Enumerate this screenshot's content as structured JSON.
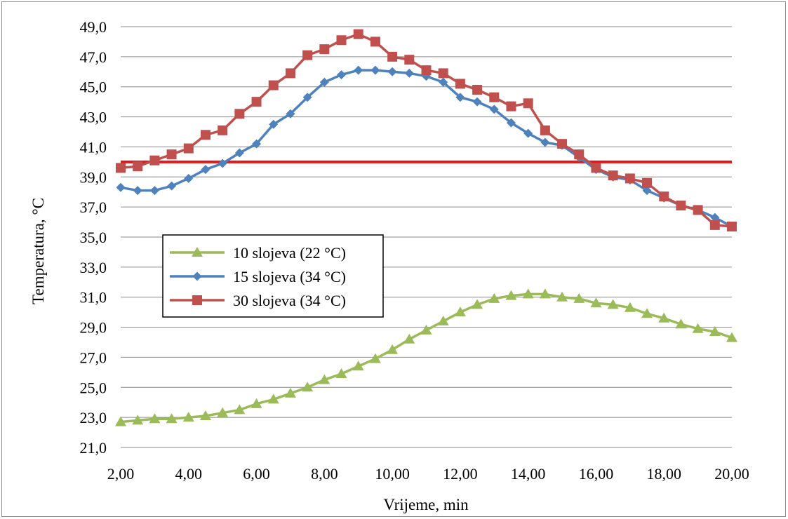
{
  "chart_data": {
    "type": "line",
    "xlabel": "Vrijeme, min",
    "ylabel": "Temperatura, °C",
    "xlim": [
      2,
      20
    ],
    "ylim": [
      21,
      49
    ],
    "x_ticks": [
      2,
      4,
      6,
      8,
      10,
      12,
      14,
      16,
      18,
      20
    ],
    "x_tick_labels": [
      "2,00",
      "4,00",
      "6,00",
      "8,00",
      "10,00",
      "12,00",
      "14,00",
      "16,00",
      "18,00",
      "20,00"
    ],
    "y_ticks": [
      21,
      23,
      25,
      27,
      29,
      31,
      33,
      35,
      37,
      39,
      41,
      43,
      45,
      47,
      49
    ],
    "y_tick_labels": [
      "21,0",
      "23,0",
      "25,0",
      "27,0",
      "29,0",
      "31,0",
      "33,0",
      "35,0",
      "37,0",
      "39,0",
      "41,0",
      "43,0",
      "45,0",
      "47,0",
      "49,0"
    ],
    "grid": "horizontal",
    "legend_position": "left-middle",
    "x": [
      2,
      2.5,
      3,
      3.5,
      4,
      4.5,
      5,
      5.5,
      6,
      6.5,
      7,
      7.5,
      8,
      8.5,
      9,
      9.5,
      10,
      10.5,
      11,
      11.5,
      12,
      12.5,
      13,
      13.5,
      14,
      14.5,
      15,
      15.5,
      16,
      16.5,
      17,
      17.5,
      18,
      18.5,
      19,
      19.5,
      20
    ],
    "series": [
      {
        "name": "10 slojeva (22 °C)",
        "color": "#9bbb59",
        "marker": "triangle",
        "values": [
          22.7,
          22.8,
          22.9,
          22.9,
          23.0,
          23.1,
          23.3,
          23.5,
          23.9,
          24.2,
          24.6,
          25.0,
          25.5,
          25.9,
          26.4,
          26.9,
          27.5,
          28.2,
          28.8,
          29.4,
          30.0,
          30.5,
          30.9,
          31.1,
          31.2,
          31.2,
          31.0,
          30.9,
          30.6,
          30.5,
          30.3,
          29.9,
          29.6,
          29.2,
          28.9,
          28.7,
          28.3
        ]
      },
      {
        "name": "15 slojeva (34 °C)",
        "color": "#4f81bd",
        "marker": "diamond",
        "values": [
          38.3,
          38.1,
          38.1,
          38.4,
          38.9,
          39.5,
          39.9,
          40.6,
          41.2,
          42.5,
          43.2,
          44.3,
          45.3,
          45.8,
          46.1,
          46.1,
          46.0,
          45.9,
          45.7,
          45.3,
          44.3,
          44.0,
          43.5,
          42.6,
          41.9,
          41.3,
          41.1,
          40.3,
          39.5,
          39.0,
          38.8,
          38.1,
          37.6,
          37.1,
          36.8,
          36.3,
          35.7
        ]
      },
      {
        "name": "30 slojeva (34 °C)",
        "color": "#c0504d",
        "marker": "square",
        "values": [
          39.6,
          39.7,
          40.1,
          40.5,
          40.9,
          41.8,
          42.1,
          43.2,
          44.0,
          45.1,
          45.9,
          47.1,
          47.5,
          48.1,
          48.5,
          48.0,
          47.0,
          46.8,
          46.1,
          45.9,
          45.2,
          44.8,
          44.3,
          43.7,
          43.9,
          42.1,
          41.2,
          40.5,
          39.6,
          39.1,
          38.9,
          38.6,
          37.7,
          37.1,
          36.8,
          35.8,
          35.7
        ]
      }
    ],
    "reference_line": {
      "value": 40,
      "color": "#e31a1c"
    }
  }
}
